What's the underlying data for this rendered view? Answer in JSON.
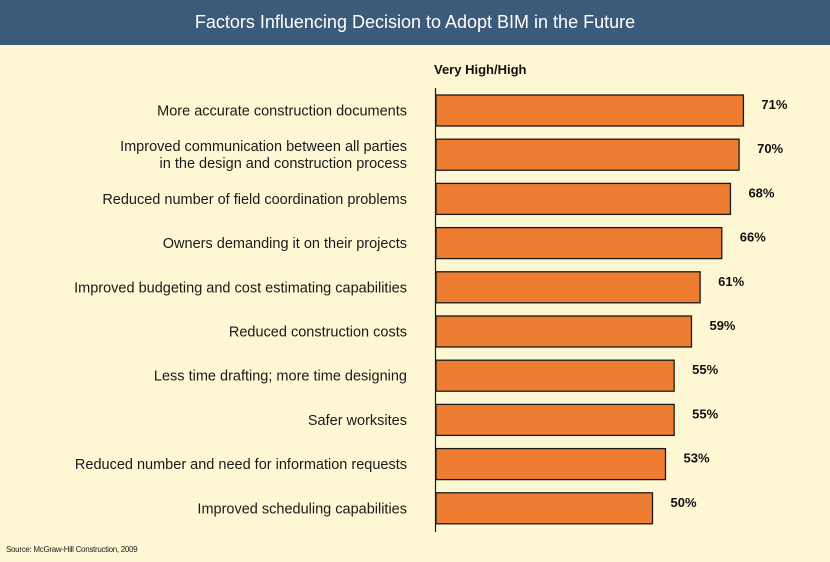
{
  "header": {
    "title": "Factors Influencing Decision to Adopt BIM in the Future"
  },
  "colors": {
    "header_bg": "#3c5a7a",
    "background": "#fdf7d4",
    "bar_fill": "#ee7d32",
    "bar_stroke": "#1a1a1a"
  },
  "chart_data": {
    "type": "bar",
    "orientation": "horizontal",
    "title": "Factors Influencing Decision to Adopt BIM in the Future",
    "series_label": "Very High/High",
    "categories": [
      [
        "More accurate construction documents"
      ],
      [
        "Improved communication between all parties",
        "in the design and construction process"
      ],
      [
        "Reduced number of field coordination problems"
      ],
      [
        "Owners demanding it on their projects"
      ],
      [
        "Improved budgeting and cost estimating capabilities"
      ],
      [
        "Reduced construction costs"
      ],
      [
        "Less time drafting; more time designing"
      ],
      [
        "Safer worksites"
      ],
      [
        "Reduced number and need for information requests"
      ],
      [
        "Improved scheduling capabilities"
      ]
    ],
    "values": [
      71,
      70,
      68,
      66,
      61,
      59,
      55,
      55,
      53,
      50
    ],
    "value_labels": [
      "71%",
      "70%",
      "68%",
      "66%",
      "61%",
      "59%",
      "55%",
      "55%",
      "53%",
      "50%"
    ],
    "xlim": [
      0,
      100
    ],
    "grid": false,
    "legend": "none"
  },
  "footer": {
    "source": "Source: McGraw-Hill Construction, 2009"
  }
}
